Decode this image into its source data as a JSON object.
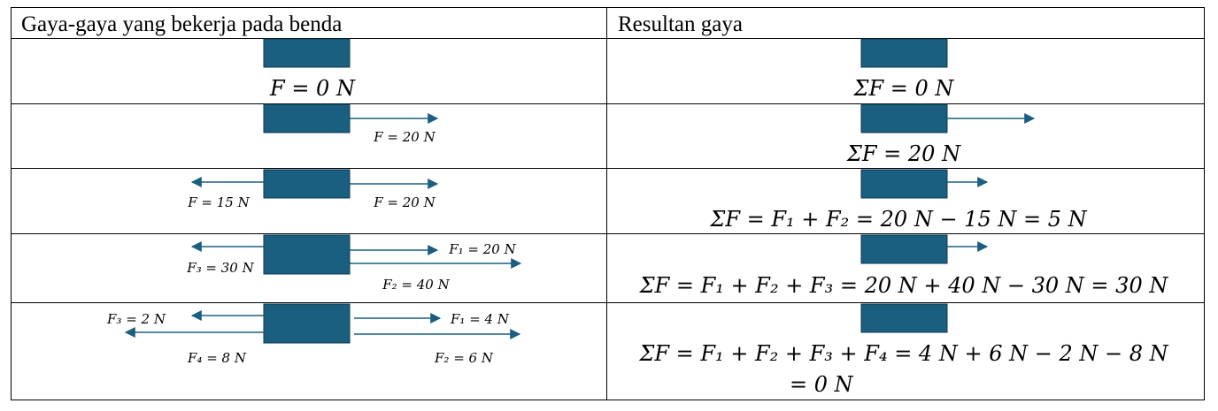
{
  "table": {
    "header_forces": "Gaya-gaya yang bekerja pada benda",
    "header_result": "Resultan gaya",
    "block_color": "#1a5e80",
    "arrow_color": "#1a5e80"
  },
  "rows": [
    {
      "forces": [
        {
          "label": "F = 0 N",
          "direction": "none",
          "magnitude": 0
        }
      ],
      "result": [
        "ΣF = 0 N"
      ],
      "resultant": 0
    },
    {
      "forces": [
        {
          "label": "F = 20 N",
          "direction": "right",
          "magnitude": 20
        }
      ],
      "result": [
        "ΣF = 20 N"
      ],
      "resultant": 20
    },
    {
      "forces": [
        {
          "label": "F = 15 N",
          "direction": "left",
          "magnitude": 15
        },
        {
          "label": "F = 20 N",
          "direction": "right",
          "magnitude": 20
        }
      ],
      "result": [
        "ΣF = F₁ + F₂ = 20 N − 15 N = 5 N"
      ],
      "resultant": 5
    },
    {
      "forces": [
        {
          "label": "F₁ = 20 N",
          "direction": "right",
          "magnitude": 20
        },
        {
          "label": "F₂ = 40 N",
          "direction": "right",
          "magnitude": 40
        },
        {
          "label": "F₃ = 30 N",
          "direction": "left",
          "magnitude": 30
        }
      ],
      "result": [
        "ΣF = F₁ + F₂ + F₃ = 20 N + 40 N − 30 N = 30 N"
      ],
      "resultant": 30
    },
    {
      "forces": [
        {
          "label": "F₁ = 4 N",
          "direction": "right",
          "magnitude": 4
        },
        {
          "label": "F₂ = 6 N",
          "direction": "right",
          "magnitude": 6
        },
        {
          "label": "F₃ = 2 N",
          "direction": "left",
          "magnitude": 2
        },
        {
          "label": "F₄ = 8 N",
          "direction": "left",
          "magnitude": 8
        }
      ],
      "result": [
        "ΣF = F₁ + F₂ + F₃ + F₄ = 4 N + 6 N − 2 N − 8 N",
        "= 0 N"
      ],
      "resultant": 0
    }
  ]
}
